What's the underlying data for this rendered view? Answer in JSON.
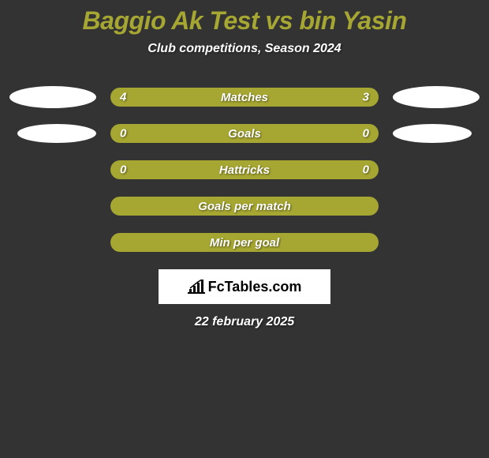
{
  "title": "Baggio Ak Test vs bin Yasin",
  "subtitle": "Club competitions, Season 2024",
  "date": "22 february 2025",
  "logo_text": "FcTables.com",
  "colors": {
    "background": "#333333",
    "bar": "#a6a632",
    "title": "#a6a632",
    "text": "#ffffff",
    "ellipse": "#ffffff",
    "logo_bg": "#ffffff",
    "logo_text": "#000000"
  },
  "rows": [
    {
      "label": "Matches",
      "left": "4",
      "right": "3",
      "show_left_ellipse": true,
      "show_right_ellipse": true,
      "ellipse_size": "big"
    },
    {
      "label": "Goals",
      "left": "0",
      "right": "0",
      "show_left_ellipse": true,
      "show_right_ellipse": true,
      "ellipse_size": "small"
    },
    {
      "label": "Hattricks",
      "left": "0",
      "right": "0",
      "show_left_ellipse": false,
      "show_right_ellipse": false,
      "ellipse_size": "small"
    },
    {
      "label": "Goals per match",
      "left": "",
      "right": "",
      "show_left_ellipse": false,
      "show_right_ellipse": false,
      "ellipse_size": "small"
    },
    {
      "label": "Min per goal",
      "left": "",
      "right": "",
      "show_left_ellipse": false,
      "show_right_ellipse": false,
      "ellipse_size": "small"
    }
  ]
}
